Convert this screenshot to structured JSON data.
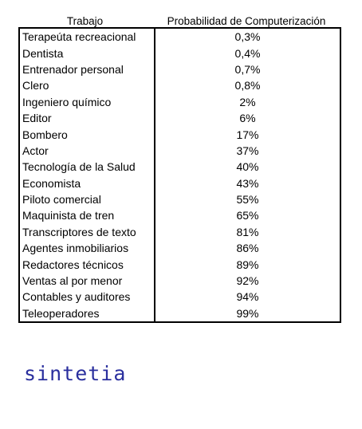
{
  "table": {
    "headers": {
      "job": "Trabajo",
      "probability": "Probabilidad de Computerización"
    },
    "rows": [
      {
        "job": "Terapeúta recreacional",
        "probability": "0,3%"
      },
      {
        "job": "Dentista",
        "probability": "0,4%"
      },
      {
        "job": "Entrenador personal",
        "probability": "0,7%"
      },
      {
        "job": "Clero",
        "probability": "0,8%"
      },
      {
        "job": "Ingeniero químico",
        "probability": "2%"
      },
      {
        "job": "Editor",
        "probability": "6%"
      },
      {
        "job": "Bombero",
        "probability": "17%"
      },
      {
        "job": "Actor",
        "probability": "37%"
      },
      {
        "job": "Tecnología de la Salud",
        "probability": "40%"
      },
      {
        "job": "Economista",
        "probability": "43%"
      },
      {
        "job": "Piloto comercial",
        "probability": "55%"
      },
      {
        "job": "Maquinista de tren",
        "probability": "65%"
      },
      {
        "job": "Transcriptores de texto",
        "probability": "81%"
      },
      {
        "job": "Agentes inmobiliarios",
        "probability": "86%"
      },
      {
        "job": "Redactores técnicos",
        "probability": "89%"
      },
      {
        "job": "Ventas al por menor",
        "probability": "92%"
      },
      {
        "job": "Contables y auditores",
        "probability": "94%"
      },
      {
        "job": "Teleoperadores",
        "probability": "99%"
      }
    ]
  },
  "logo": {
    "text": "sintetia",
    "color": "#2a2f9e"
  }
}
